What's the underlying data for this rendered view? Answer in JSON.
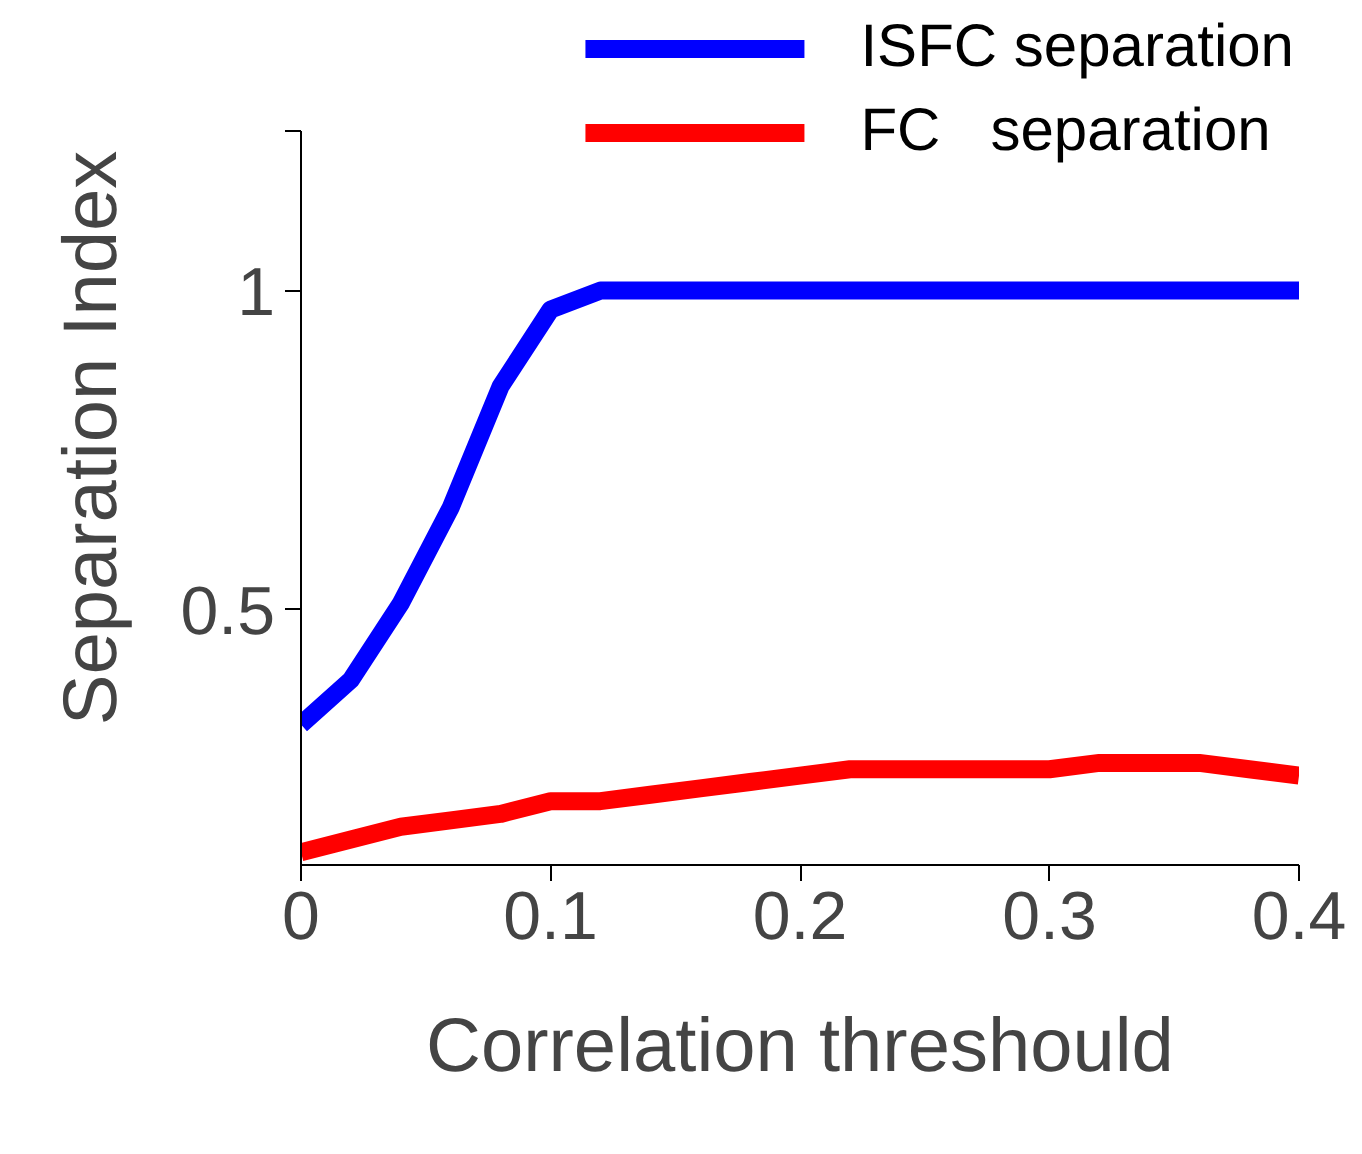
{
  "chart_data": {
    "type": "line",
    "xlabel": "Correlation threshould",
    "ylabel": "Separation Index",
    "x": [
      0,
      0.02,
      0.04,
      0.06,
      0.08,
      0.1,
      0.12,
      0.14,
      0.16,
      0.18,
      0.2,
      0.22,
      0.24,
      0.26,
      0.28,
      0.3,
      0.32,
      0.34,
      0.36,
      0.38,
      0.4
    ],
    "series": [
      {
        "name": "ISFC separation",
        "color": "#0000ff",
        "values": [
          0.32,
          0.39,
          0.51,
          0.66,
          0.85,
          0.97,
          1.0,
          1.0,
          1.0,
          1.0,
          1.0,
          1.0,
          1.0,
          1.0,
          1.0,
          1.0,
          1.0,
          1.0,
          1.0,
          1.0,
          1.0
        ]
      },
      {
        "name": "FC   separation",
        "color": "#ff0000",
        "values": [
          0.12,
          0.14,
          0.16,
          0.17,
          0.18,
          0.2,
          0.2,
          0.21,
          0.22,
          0.23,
          0.24,
          0.25,
          0.25,
          0.25,
          0.25,
          0.25,
          0.26,
          0.26,
          0.26,
          0.25,
          0.24
        ]
      }
    ],
    "xlim": [
      0,
      0.4
    ],
    "ylim": [
      0.1,
      1.25
    ],
    "xticks": [
      0,
      0.1,
      0.2,
      0.3,
      0.4
    ],
    "yticks": [
      {
        "value": 0.5,
        "label": "0.5"
      },
      {
        "value": 1,
        "label": "1"
      },
      {
        "value": 1.25,
        "label": null
      }
    ],
    "grid": false,
    "legend": "top right",
    "marker": "none",
    "line_style": "solid"
  }
}
